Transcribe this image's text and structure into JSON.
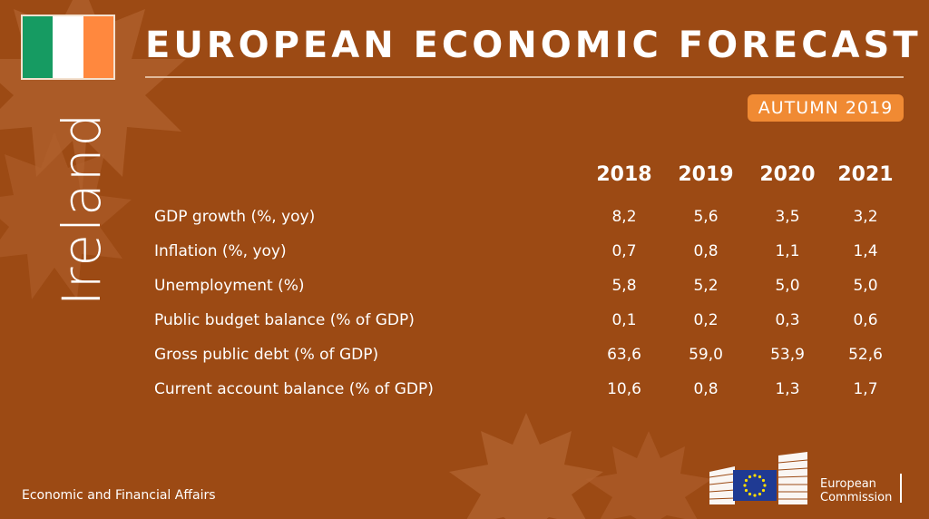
{
  "flag": {
    "colors": [
      "#169b62",
      "#ffffff",
      "#ff883e"
    ]
  },
  "header": {
    "title": "EUROPEAN ECONOMIC FORECAST",
    "season": "AUTUMN 2019",
    "season_color": "#f08a33"
  },
  "country": "Ireland",
  "table": {
    "years": [
      "2018",
      "2019",
      "2020",
      "2021"
    ],
    "rows": [
      {
        "label": "GDP growth (%, yoy)",
        "values": [
          "8,2",
          "5,6",
          "3,5",
          "3,2"
        ]
      },
      {
        "label": "Inflation (%, yoy)",
        "values": [
          "0,7",
          "0,8",
          "1,1",
          "1,4"
        ]
      },
      {
        "label": "Unemployment (%)",
        "values": [
          "5,8",
          "5,2",
          "5,0",
          "5,0"
        ]
      },
      {
        "label": "Public budget balance (% of GDP)",
        "values": [
          "0,1",
          "0,2",
          "0,3",
          "0,6"
        ]
      },
      {
        "label": "Gross public debt (% of GDP)",
        "values": [
          "63,6",
          "59,0",
          "53,9",
          "52,6"
        ]
      },
      {
        "label": "Current account balance (% of GDP)",
        "values": [
          "10,6",
          "0,8",
          "1,3",
          "1,7"
        ]
      }
    ]
  },
  "footer": {
    "department": "Economic and Financial Affairs",
    "logo_line1": "European",
    "logo_line2": "Commission"
  },
  "colors": {
    "background": "#9c4a14",
    "leaf": "#b0612e"
  }
}
